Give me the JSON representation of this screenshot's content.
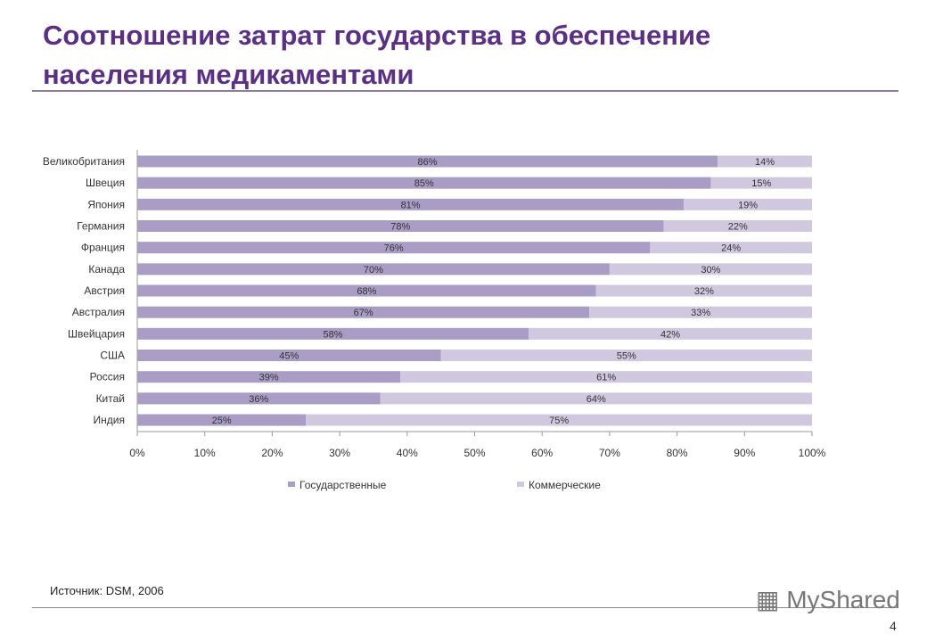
{
  "header": {
    "title": "Соотношение затрат государства в обеспечение населения медикаментами"
  },
  "colors": {
    "title": "#5b2f86",
    "government": "#a99cc5",
    "commercial": "#d0c8df"
  },
  "chart_data": {
    "type": "bar",
    "orientation": "horizontal",
    "stacked": "100%",
    "categories": [
      "Великобритания",
      "Швеция",
      "Япония",
      "Германия",
      "Франция",
      "Канада",
      "Австрия",
      "Австралия",
      "Швейцария",
      "США",
      "Россия",
      "Китай",
      "Индия"
    ],
    "series": [
      {
        "name": "Государственные",
        "values": [
          86,
          85,
          81,
          78,
          76,
          70,
          68,
          67,
          58,
          45,
          39,
          36,
          25
        ],
        "labels": [
          "86%",
          "85%",
          "81%",
          "78%",
          "76%",
          "70%",
          "68%",
          "67%",
          "58%",
          "45%",
          "39%",
          "36%",
          "25%"
        ]
      },
      {
        "name": "Коммерческие",
        "values": [
          14,
          15,
          19,
          22,
          24,
          30,
          32,
          33,
          42,
          55,
          61,
          64,
          75
        ],
        "labels": [
          "14%",
          "15%",
          "19%",
          "22%",
          "24%",
          "30%",
          "32%",
          "33%",
          "42%",
          "55%",
          "61%",
          "64%",
          "75%"
        ]
      }
    ],
    "xlim": [
      0,
      100
    ],
    "xticks": [
      "0%",
      "10%",
      "20%",
      "30%",
      "40%",
      "50%",
      "60%",
      "70%",
      "80%",
      "90%",
      "100%"
    ],
    "grid": false,
    "legend": "bottom"
  },
  "footer": {
    "source": "Источник: DSM, 2006",
    "logo": "MyShared",
    "page": "4"
  }
}
